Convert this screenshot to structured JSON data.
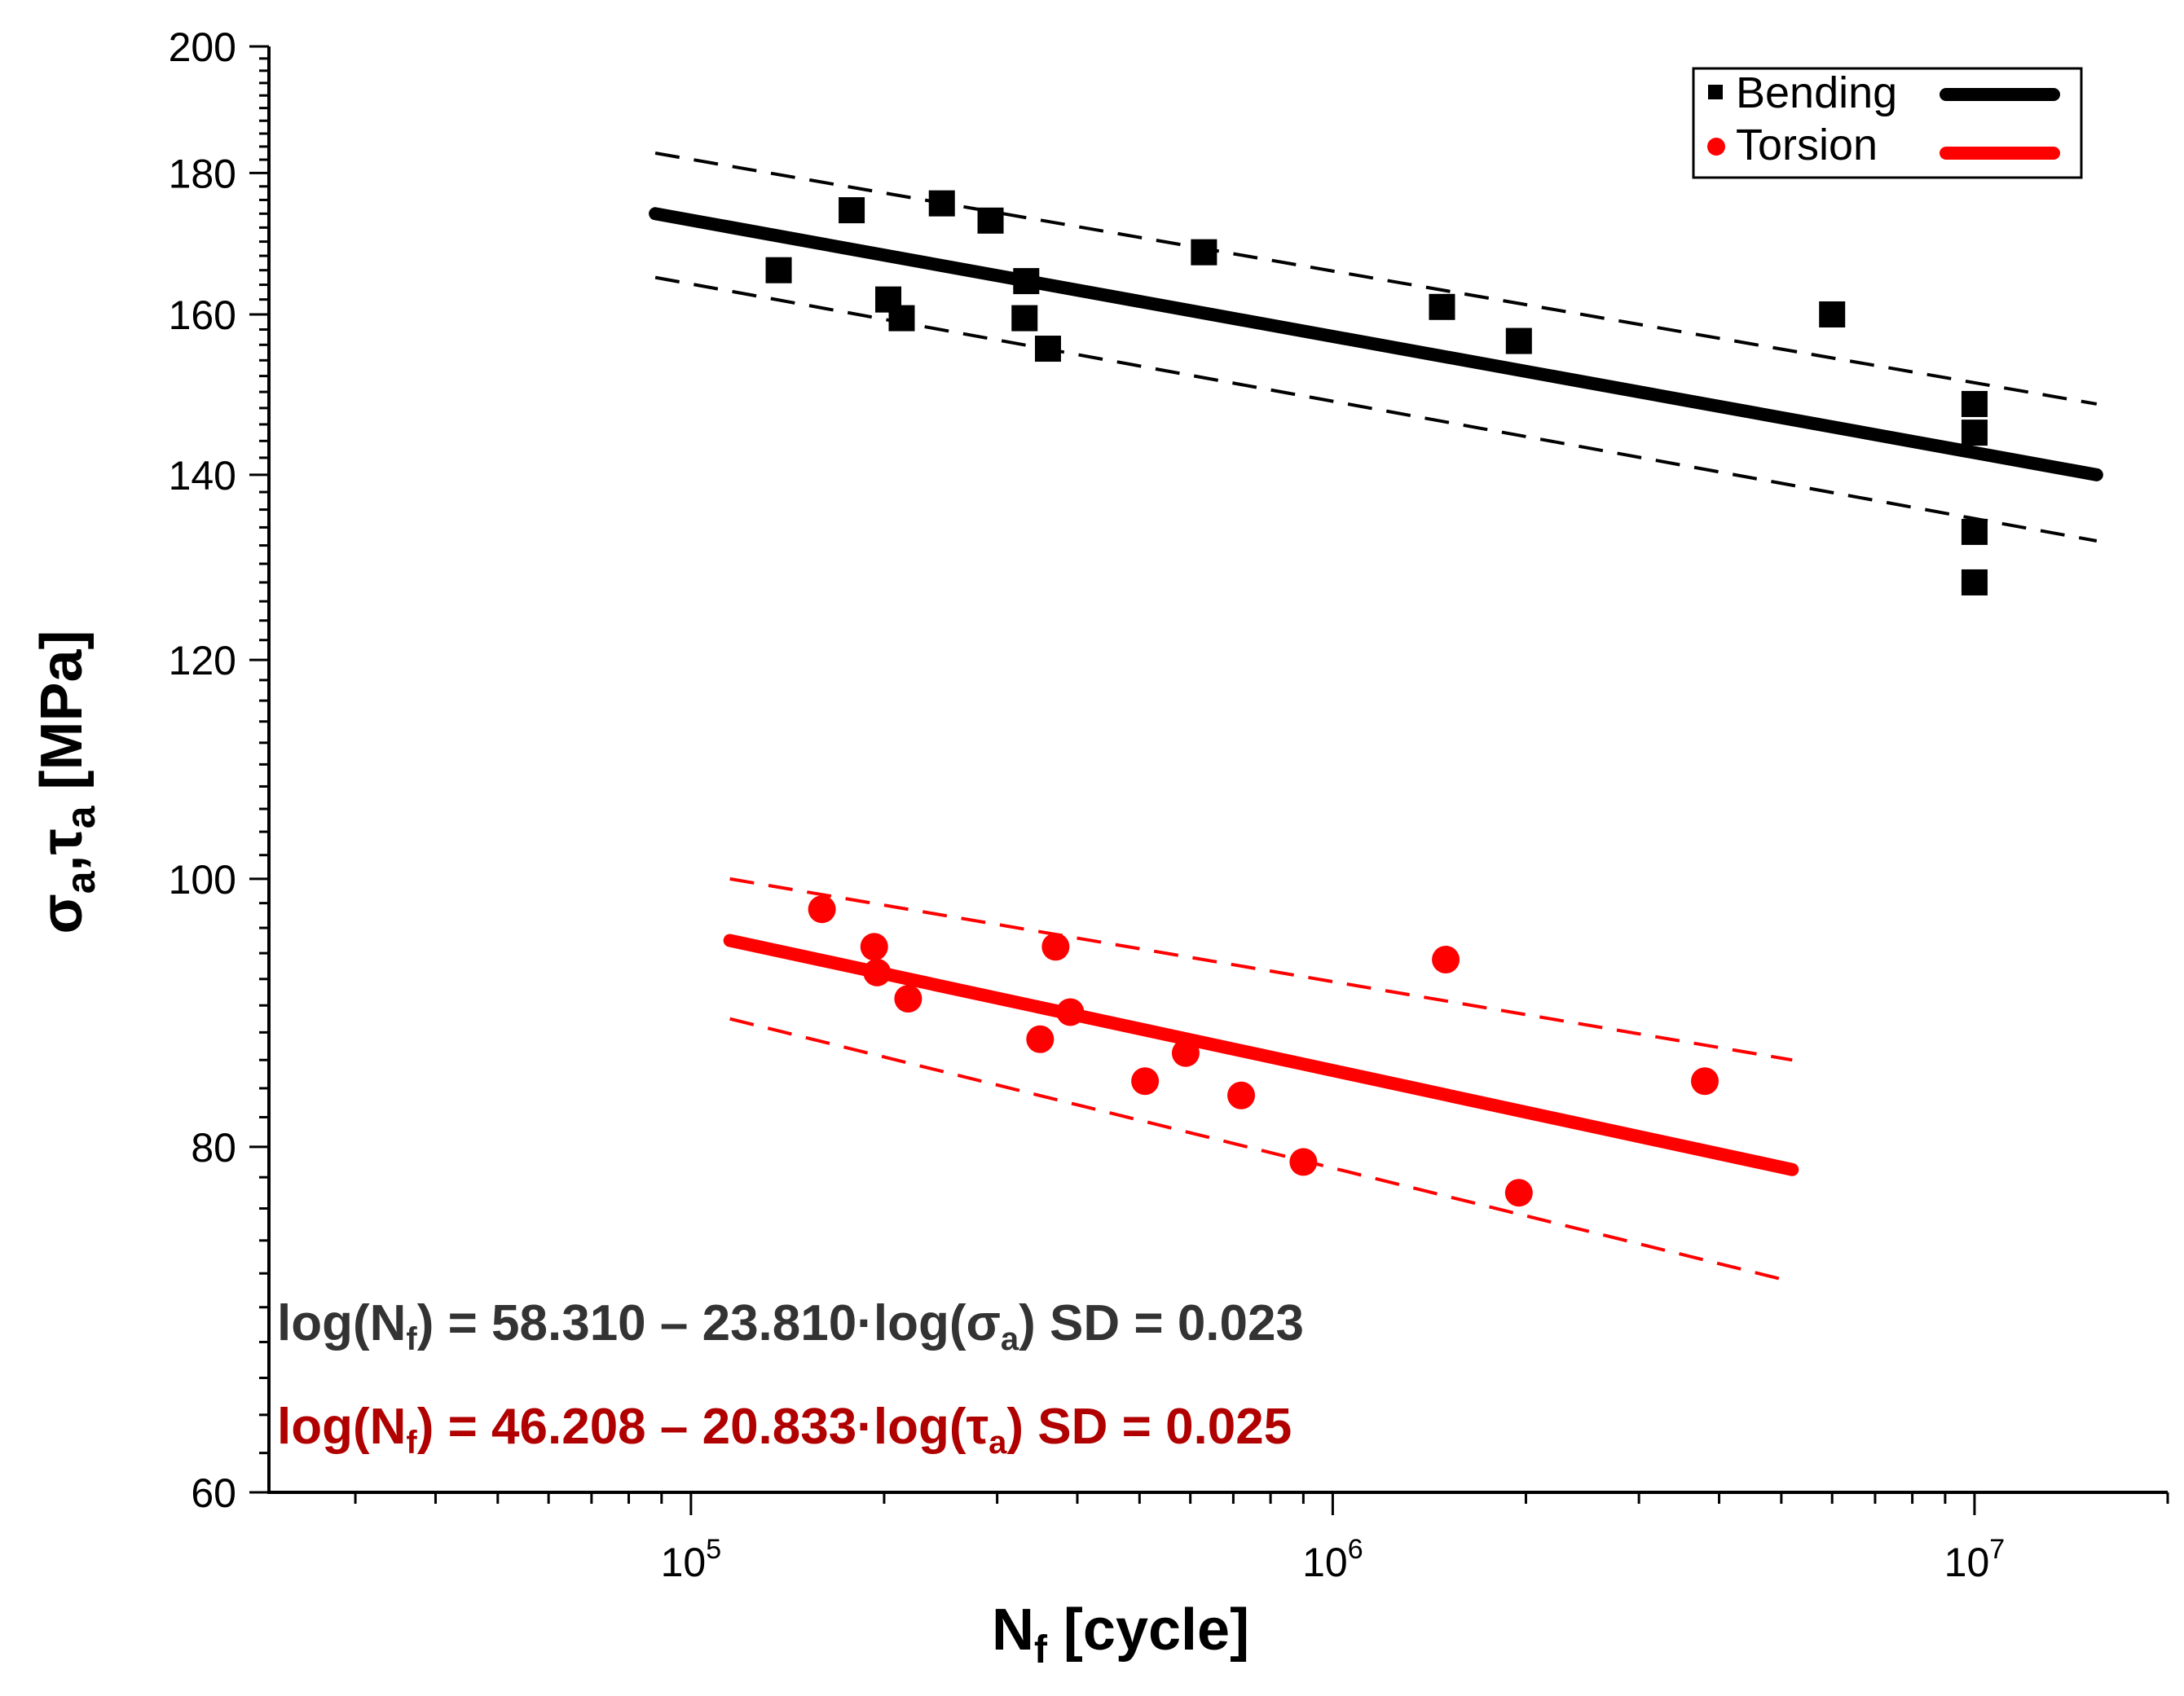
{
  "chart_data": {
    "type": "scatter",
    "x_scale": "log",
    "y_scale": "log",
    "xlim": [
      22000,
      20000000
    ],
    "ylim": [
      60,
      200
    ],
    "x_ticks": [
      {
        "value": 100000,
        "base": "10",
        "exp": "5"
      },
      {
        "value": 1000000,
        "base": "10",
        "exp": "6"
      },
      {
        "value": 10000000,
        "base": "10",
        "exp": "7"
      }
    ],
    "y_ticks": [
      "60",
      "80",
      "100",
      "120",
      "140",
      "160",
      "180",
      "200"
    ],
    "xlabel": {
      "main": "N",
      "sub": "f",
      "rest": " [cycle]"
    },
    "ylabel": {
      "s1": "σ",
      "sub1": "a",
      "mid": ",τ",
      "sub2": "a",
      "rest": " [MPa]"
    },
    "legend": [
      {
        "name": "Bending",
        "marker": "square",
        "color": "#000000"
      },
      {
        "name": "Torsion",
        "marker": "circle",
        "color": "#ff0000"
      }
    ],
    "series": [
      {
        "name": "Bending",
        "color": "#000000",
        "points": [
          [
            137000,
            166
          ],
          [
            178000,
            174.5
          ],
          [
            203000,
            162
          ],
          [
            213000,
            159.5
          ],
          [
            246000,
            175.5
          ],
          [
            293000,
            173
          ],
          [
            333000,
            164.5
          ],
          [
            331000,
            159.5
          ],
          [
            360000,
            155.5
          ],
          [
            630000,
            168.5
          ],
          [
            1480000,
            161
          ],
          [
            1950000,
            156.5
          ],
          [
            6000000,
            160
          ],
          [
            10000000,
            148.5
          ],
          [
            10000000,
            145
          ],
          [
            10000000,
            133.5
          ],
          [
            10000000,
            128
          ]
        ],
        "fit": {
          "x": [
            88000,
            15500000
          ],
          "y": [
            174,
            140
          ]
        },
        "band_upper": {
          "x": [
            88000,
            15500000
          ],
          "y": [
            183,
            148.5
          ]
        },
        "band_lower": {
          "x": [
            88000,
            15500000
          ],
          "y": [
            165,
            132.5
          ]
        }
      },
      {
        "name": "Torsion",
        "color": "#ff0000",
        "points": [
          [
            160000,
            97.5
          ],
          [
            193000,
            94.5
          ],
          [
            195000,
            92.5
          ],
          [
            218000,
            90.5
          ],
          [
            350000,
            87.5
          ],
          [
            370000,
            94.5
          ],
          [
            390000,
            89.5
          ],
          [
            510000,
            84.5
          ],
          [
            590000,
            86.5
          ],
          [
            720000,
            83.5
          ],
          [
            900000,
            79
          ],
          [
            1500000,
            93.5
          ],
          [
            1950000,
            77
          ],
          [
            3800000,
            84.5
          ]
        ],
        "fit": {
          "x": [
            115000,
            5200000
          ],
          "y": [
            95,
            78.5
          ]
        },
        "band_upper": {
          "x": [
            115000,
            5200000
          ],
          "y": [
            100,
            86
          ]
        },
        "band_lower": {
          "x": [
            115000,
            5200000
          ],
          "y": [
            89,
            71.5
          ]
        }
      }
    ],
    "annotations": [
      {
        "color": "#333333",
        "p1": "log(N",
        "s1": "f",
        "p2": ") = 58.310 – 23.810·log(σ",
        "s2": "a",
        "p3": ")  SD = 0.023"
      },
      {
        "color": "#b00000",
        "p1": "log(N",
        "s1": "f",
        "p2": ") = 46.208 – 20.833·log(τ",
        "s2": "a",
        "p3": ")   SD = 0.025"
      }
    ]
  }
}
